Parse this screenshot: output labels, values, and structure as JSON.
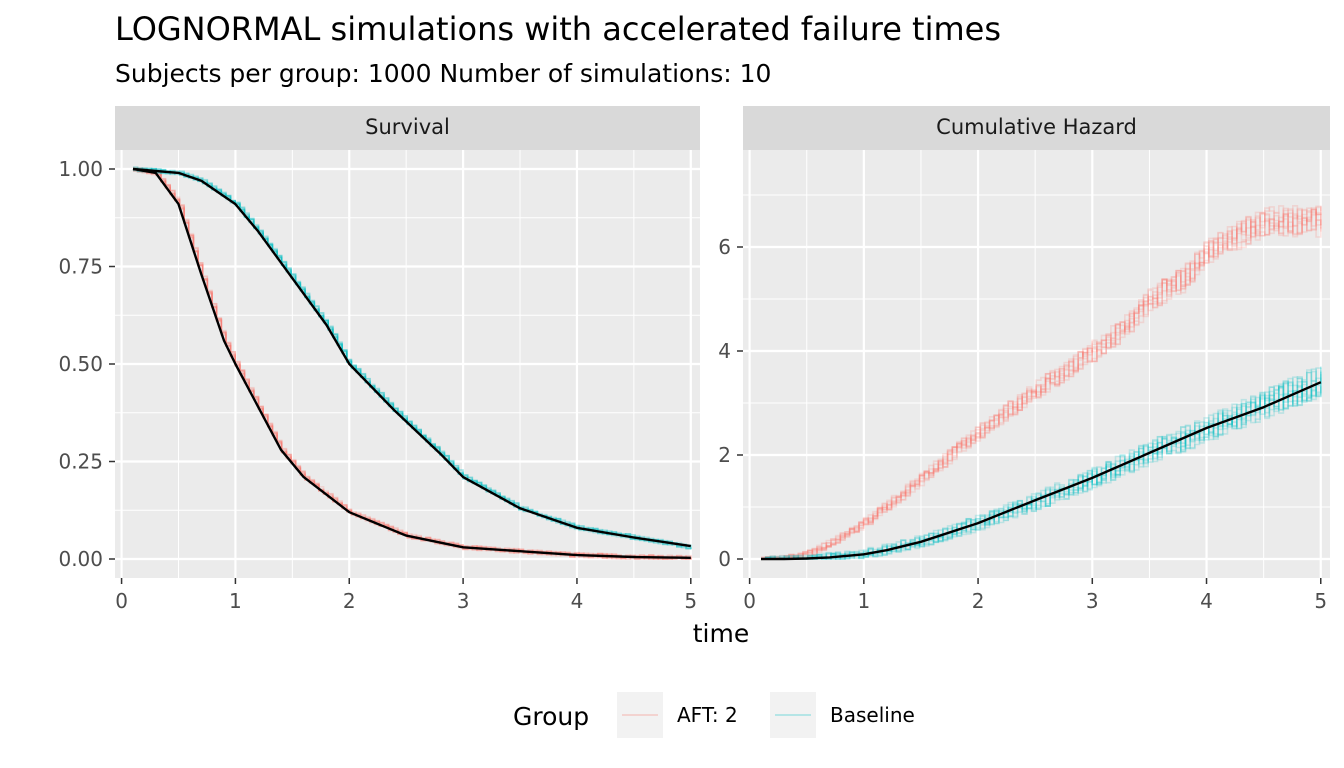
{
  "chart_data": {
    "type": "line",
    "title": "LOGNORMAL simulations with accelerated failure times",
    "subtitle": "Subjects per group: 1000  Number of simulations: 10",
    "xlabel": "time",
    "grid": true,
    "legend": {
      "title": "Group",
      "position": "bottom",
      "entries": [
        {
          "label": "AFT:  2",
          "color": "#F8766D"
        },
        {
          "label": "Baseline",
          "color": "#00BFC4"
        }
      ]
    },
    "panels": [
      {
        "name": "Survival",
        "xlim": [
          0,
          5
        ],
        "ylim": [
          0,
          1
        ],
        "x_ticks": [
          0,
          1,
          2,
          3,
          4,
          5
        ],
        "y_ticks": [
          0,
          0.25,
          0.5,
          0.75,
          1
        ],
        "y_tick_labels": [
          "0.00",
          "0.25",
          "0.50",
          "0.75",
          "1.00"
        ],
        "series": [
          {
            "name": "AFT:  2",
            "kind": "simulations",
            "n": 10,
            "color": "#F8766D",
            "opacity": 0.2,
            "x": [
              0.1,
              0.3,
              0.5,
              0.7,
              0.9,
              1.0,
              1.2,
              1.4,
              1.6,
              2.0,
              2.5,
              3.0,
              3.5,
              4.0,
              4.5,
              5.0
            ],
            "y": [
              1.0,
              0.99,
              0.91,
              0.73,
              0.56,
              0.5,
              0.39,
              0.28,
              0.21,
              0.12,
              0.06,
              0.03,
              0.02,
              0.01,
              0.005,
              0.003
            ]
          },
          {
            "name": "Baseline",
            "kind": "simulations",
            "n": 10,
            "color": "#00BFC4",
            "opacity": 0.2,
            "x": [
              0.1,
              0.5,
              0.7,
              1.0,
              1.2,
              1.5,
              1.8,
              2.0,
              2.4,
              2.8,
              3.0,
              3.5,
              4.0,
              4.5,
              5.0
            ],
            "y": [
              1.0,
              0.99,
              0.97,
              0.91,
              0.84,
              0.72,
              0.6,
              0.5,
              0.38,
              0.27,
              0.21,
              0.13,
              0.08,
              0.055,
              0.03
            ]
          },
          {
            "name": "true AFT:  2",
            "kind": "theoretical",
            "color": "#000000",
            "x": [
              0.1,
              0.3,
              0.5,
              0.7,
              0.9,
              1.0,
              1.2,
              1.4,
              1.6,
              2.0,
              2.5,
              3.0,
              3.5,
              4.0,
              4.5,
              5.0
            ],
            "y": [
              1.0,
              0.99,
              0.91,
              0.73,
              0.56,
              0.5,
              0.39,
              0.28,
              0.21,
              0.12,
              0.06,
              0.03,
              0.02,
              0.01,
              0.005,
              0.003
            ]
          },
          {
            "name": "true Baseline",
            "kind": "theoretical",
            "color": "#000000",
            "x": [
              0.1,
              0.5,
              0.7,
              1.0,
              1.2,
              1.5,
              1.8,
              2.0,
              2.4,
              2.8,
              3.0,
              3.5,
              4.0,
              4.5,
              5.0
            ],
            "y": [
              1.0,
              0.99,
              0.97,
              0.91,
              0.84,
              0.72,
              0.6,
              0.5,
              0.38,
              0.27,
              0.21,
              0.13,
              0.08,
              0.055,
              0.033
            ]
          }
        ]
      },
      {
        "name": "Cumulative Hazard",
        "xlim": [
          0,
          5
        ],
        "ylim": [
          0,
          7.5
        ],
        "x_ticks": [
          0,
          1,
          2,
          3,
          4,
          5
        ],
        "y_ticks": [
          0,
          2,
          4,
          6
        ],
        "y_tick_labels": [
          "0",
          "2",
          "4",
          "6"
        ],
        "series": [
          {
            "name": "AFT:  2",
            "kind": "simulations",
            "n": 10,
            "color": "#F8766D",
            "opacity": 0.2,
            "x": [
              0.1,
              0.3,
              0.5,
              0.7,
              1.0,
              1.5,
              2.0,
              2.5,
              3.0,
              3.3,
              3.5,
              3.8,
              4.0,
              4.5,
              5.0
            ],
            "y": [
              0,
              0.01,
              0.09,
              0.32,
              0.7,
              1.55,
              2.45,
              3.25,
              4.0,
              4.5,
              5.0,
              5.4,
              5.9,
              6.5,
              6.5
            ]
          },
          {
            "name": "Baseline",
            "kind": "simulations",
            "n": 10,
            "color": "#00BFC4",
            "opacity": 0.2,
            "x": [
              0.1,
              0.5,
              1.0,
              1.5,
              2.0,
              2.5,
              3.0,
              3.5,
              4.0,
              4.5,
              5.0
            ],
            "y": [
              0,
              0.01,
              0.1,
              0.35,
              0.7,
              1.12,
              1.56,
              2.05,
              2.5,
              2.97,
              3.45
            ]
          },
          {
            "name": "true Baseline",
            "kind": "theoretical",
            "color": "#000000",
            "x": [
              0.1,
              0.3,
              0.5,
              0.7,
              1.0,
              1.2,
              1.5,
              2.0,
              2.5,
              3.0,
              3.5,
              4.0,
              4.5,
              5.0
            ],
            "y": [
              0,
              0,
              0.01,
              0.03,
              0.09,
              0.17,
              0.33,
              0.69,
              1.13,
              1.56,
              2.04,
              2.52,
              2.92,
              3.4
            ]
          }
        ]
      }
    ]
  }
}
